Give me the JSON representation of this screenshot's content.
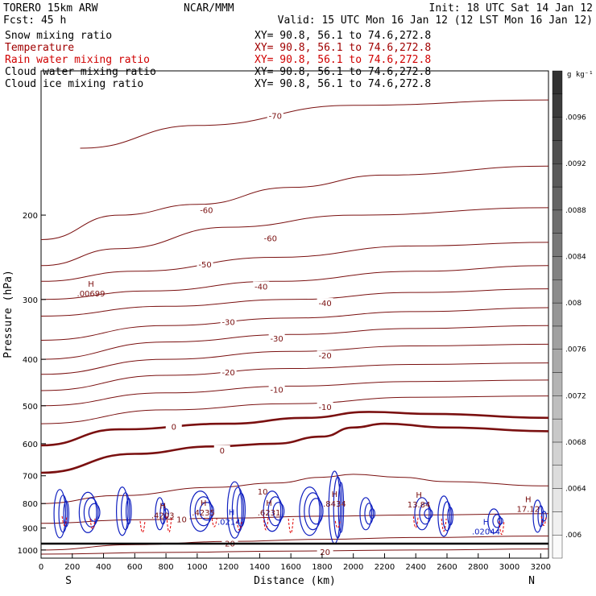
{
  "header": {
    "model": "TORERO  15km ARW",
    "center": "NCAR/MMM",
    "init": "Init: 18 UTC Sat 14 Jan 12",
    "fcst": "Fcst:  45 h",
    "valid": "Valid: 15 UTC Mon 16 Jan 12 (12 LST Mon 16 Jan 12)"
  },
  "legend": [
    {
      "name": "Snow mixing ratio",
      "color": "#000000",
      "xy": "XY=  90.8, 56.1 to  74.6,272.8"
    },
    {
      "name": "Temperature",
      "color": "#a00000",
      "xy": "XY=  90.8, 56.1 to  74.6,272.8"
    },
    {
      "name": "Rain water mixing ratio",
      "color": "#d00000",
      "xy": "XY=  90.8, 56.1 to  74.6,272.8"
    },
    {
      "name": "Cloud water mixing ratio",
      "color": "#000000",
      "xy": "XY=  90.8, 56.1 to  74.6,272.8"
    },
    {
      "name": "Cloud ice mixing ratio",
      "color": "#000000",
      "xy": "XY=  90.8, 56.1 to  74.6,272.8"
    }
  ],
  "chart_data": {
    "type": "line",
    "title": "",
    "xlabel": "Distance (km)",
    "ylabel": "Pressure (hPa)",
    "x_ticks": [
      "0",
      "200",
      "400",
      "600",
      "800",
      "1000",
      "1200",
      "1400",
      "1600",
      "1800",
      "2000",
      "2200",
      "2400",
      "2600",
      "2800",
      "3000",
      "3200"
    ],
    "y_ticks": [
      "200",
      "300",
      "400",
      "500",
      "600",
      "700",
      "800",
      "900",
      "1000"
    ],
    "xlim": [
      0,
      3250
    ],
    "ylim": [
      1040,
      100
    ],
    "y_scale": "log",
    "end_labels": {
      "left": "S",
      "right": "N"
    },
    "colorbar": {
      "unit": "g kg⁻¹",
      "ticks": [
        ".006",
        ".0064",
        ".0068",
        ".0072",
        ".0076",
        ".008",
        ".0084",
        ".0088",
        ".0092",
        ".0096"
      ],
      "range": [
        0.0058,
        0.01
      ]
    },
    "temperature_isotherms": [
      {
        "label": "-70",
        "points": [
          [
            250,
            145
          ],
          [
            1000,
            130
          ],
          [
            2000,
            118
          ],
          [
            3250,
            115
          ]
        ]
      },
      {
        "label": "-60",
        "points": [
          [
            0,
            225
          ],
          [
            500,
            200
          ],
          [
            1000,
            190
          ],
          [
            1600,
            175
          ],
          [
            2200,
            165
          ],
          [
            3250,
            158
          ]
        ]
      },
      {
        "label": "-60",
        "points": [
          [
            0,
            255
          ],
          [
            500,
            235
          ],
          [
            1200,
            212
          ],
          [
            2000,
            200
          ],
          [
            3250,
            193
          ]
        ]
      },
      {
        "label": "-50",
        "points": [
          [
            0,
            275
          ],
          [
            600,
            262
          ],
          [
            1500,
            245
          ],
          [
            2400,
            232
          ],
          [
            3250,
            228
          ]
        ]
      },
      {
        "label": "-40",
        "points": [
          [
            0,
            300
          ],
          [
            700,
            288
          ],
          [
            1500,
            275
          ],
          [
            2400,
            262
          ],
          [
            3250,
            255
          ]
        ]
      },
      {
        "label": "-40",
        "points": [
          [
            0,
            325
          ],
          [
            800,
            310
          ],
          [
            1600,
            300
          ],
          [
            2400,
            290
          ],
          [
            3250,
            285
          ]
        ]
      },
      {
        "label": "-30",
        "points": [
          [
            0,
            365
          ],
          [
            800,
            340
          ],
          [
            1600,
            328
          ],
          [
            2400,
            318
          ],
          [
            3250,
            312
          ]
        ]
      },
      {
        "label": "-30",
        "points": [
          [
            0,
            400
          ],
          [
            800,
            368
          ],
          [
            1600,
            355
          ],
          [
            2400,
            345
          ],
          [
            3250,
            340
          ]
        ]
      },
      {
        "label": "-20",
        "points": [
          [
            0,
            430
          ],
          [
            800,
            400
          ],
          [
            1600,
            385
          ],
          [
            2400,
            375
          ],
          [
            3250,
            372
          ]
        ]
      },
      {
        "label": "-20",
        "points": [
          [
            0,
            465
          ],
          [
            800,
            432
          ],
          [
            1600,
            418
          ],
          [
            2400,
            410
          ],
          [
            3250,
            407
          ]
        ]
      },
      {
        "label": "-10",
        "points": [
          [
            0,
            500
          ],
          [
            800,
            470
          ],
          [
            1600,
            455
          ],
          [
            2400,
            445
          ],
          [
            3250,
            442
          ]
        ]
      },
      {
        "label": "-10",
        "points": [
          [
            0,
            545
          ],
          [
            800,
            510
          ],
          [
            1600,
            495
          ],
          [
            2400,
            480
          ],
          [
            3250,
            477
          ]
        ]
      },
      {
        "label": "0",
        "points": [
          [
            0,
            605
          ],
          [
            500,
            560
          ],
          [
            1200,
            545
          ],
          [
            1700,
            530
          ],
          [
            2100,
            515
          ],
          [
            2500,
            520
          ],
          [
            3250,
            530
          ]
        ]
      },
      {
        "label": "0",
        "points": [
          [
            0,
            690
          ],
          [
            600,
            630
          ],
          [
            1100,
            608
          ],
          [
            1500,
            600
          ],
          [
            1800,
            580
          ],
          [
            2000,
            555
          ],
          [
            2200,
            545
          ],
          [
            2600,
            555
          ],
          [
            3250,
            565
          ]
        ]
      },
      {
        "label": "10",
        "points": [
          [
            0,
            800
          ],
          [
            500,
            770
          ],
          [
            1100,
            740
          ],
          [
            1500,
            725
          ],
          [
            1800,
            705
          ],
          [
            2000,
            695
          ],
          [
            2300,
            705
          ],
          [
            2600,
            720
          ],
          [
            3250,
            735
          ]
        ]
      },
      {
        "label": "10",
        "points": [
          [
            0,
            880
          ],
          [
            600,
            865
          ],
          [
            1200,
            858
          ],
          [
            1800,
            850
          ],
          [
            2400,
            845
          ],
          [
            3250,
            840
          ]
        ]
      },
      {
        "label": "20",
        "points": [
          [
            0,
            1000
          ],
          [
            600,
            975
          ],
          [
            1200,
            960
          ],
          [
            1800,
            950
          ],
          [
            2400,
            942
          ],
          [
            3250,
            935
          ]
        ]
      },
      {
        "label": "20",
        "points": [
          [
            0,
            1020
          ],
          [
            800,
            1012
          ],
          [
            1600,
            1005
          ],
          [
            2400,
            1000
          ],
          [
            3250,
            995
          ]
        ]
      }
    ],
    "maxima_labels": [
      {
        "label": "H",
        "value": ".00699",
        "x": 320,
        "p": 282
      },
      {
        "label": "H",
        "value": ".4203",
        "x": 780,
        "p": 820
      },
      {
        "label": "H",
        "value": ".4235",
        "x": 1040,
        "p": 808
      },
      {
        "label": "H",
        "value": ".6231",
        "x": 1460,
        "p": 808
      },
      {
        "label": "H",
        "value": ".8434",
        "x": 1880,
        "p": 775
      },
      {
        "label": "H",
        "value": "13.84",
        "x": 2420,
        "p": 778
      },
      {
        "label": "H",
        "value": "17.12",
        "x": 3120,
        "p": 795
      },
      {
        "label": "H",
        "value": ".02147",
        "x": 1220,
        "p": 845
      },
      {
        "label": "H",
        "value": ".02044",
        "x": 2850,
        "p": 885
      }
    ]
  }
}
